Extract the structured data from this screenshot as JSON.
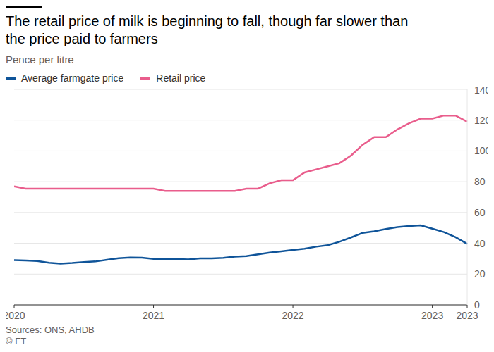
{
  "chart_data": {
    "type": "line",
    "title": "The retail price of milk is beginning to fall, though far slower than the price paid to farmers",
    "subtitle": "Pence per litre",
    "source": "Sources: ONS, AHDB",
    "credit": "© FT",
    "categories": [
      "2020",
      null,
      null,
      null,
      null,
      null,
      null,
      null,
      null,
      null,
      null,
      null,
      "2021",
      null,
      null,
      null,
      null,
      null,
      null,
      null,
      null,
      null,
      null,
      null,
      "2022",
      null,
      null,
      null,
      null,
      null,
      null,
      null,
      null,
      null,
      null,
      null,
      "2023",
      null,
      null,
      "2023"
    ],
    "series": [
      {
        "name": "Average farmgate price",
        "color": "#0f5499",
        "values": [
          29,
          28.8,
          28.5,
          27.3,
          26.8,
          27.2,
          27.8,
          28.2,
          29.3,
          30.3,
          30.8,
          30.6,
          29.9,
          30,
          29.8,
          29.5,
          30.2,
          30.2,
          30.5,
          31.3,
          31.7,
          32.8,
          34,
          34.8,
          35.7,
          36.5,
          37.8,
          38.8,
          41,
          43.8,
          46.8,
          47.8,
          49.3,
          50.6,
          51.2,
          51.7,
          49.5,
          47.3,
          44,
          39.6
        ]
      },
      {
        "name": "Retail price",
        "color": "#e95d8c",
        "values": [
          77,
          75.5,
          75.5,
          75.5,
          75.5,
          75.5,
          75.5,
          75.5,
          75.5,
          75.5,
          75.5,
          75.5,
          75.5,
          74,
          74,
          74,
          74,
          74,
          74,
          74,
          75.5,
          75.5,
          79,
          81,
          81,
          86,
          88,
          90,
          92,
          97,
          104,
          109,
          109,
          114,
          118,
          121,
          121,
          123,
          123,
          119
        ]
      }
    ],
    "ylim": [
      0,
      140
    ],
    "yticks": [
      0,
      20,
      40,
      60,
      80,
      100,
      120,
      140
    ],
    "grid": true,
    "legend": "top"
  }
}
